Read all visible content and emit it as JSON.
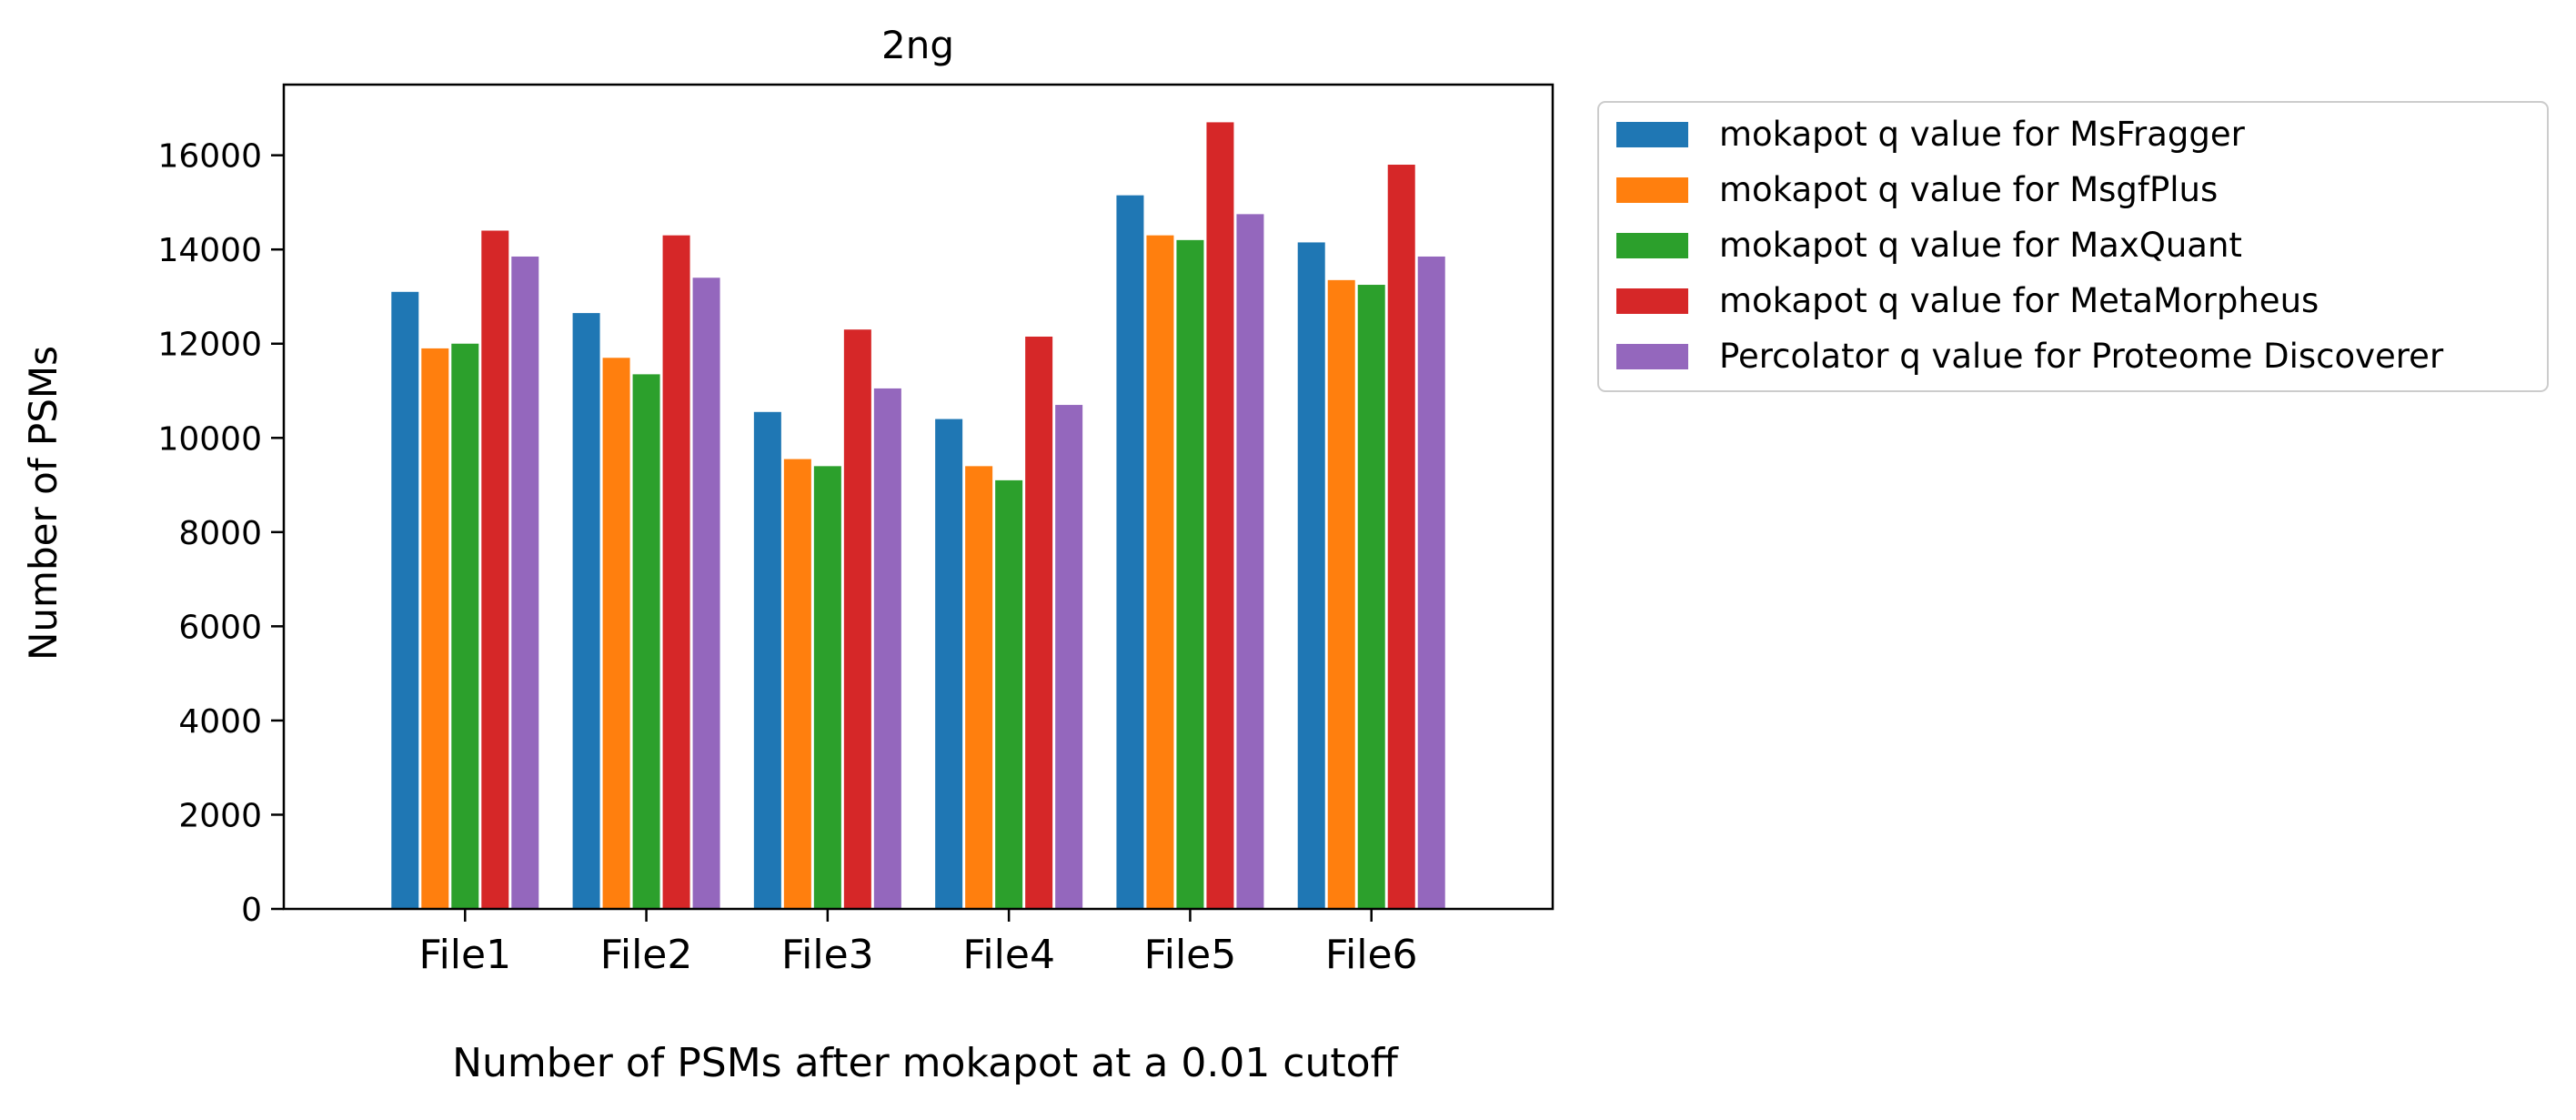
{
  "chart_data": {
    "type": "bar",
    "title": "2ng",
    "xlabel": "Number of PSMs after mokapot at a 0.01 cutoff",
    "ylabel": "Number of PSMs",
    "categories": [
      "File1",
      "File2",
      "File3",
      "File4",
      "File5",
      "File6"
    ],
    "ylim": [
      0,
      17500
    ],
    "yticks": [
      "0",
      "2000",
      "4000",
      "6000",
      "8000",
      "10000",
      "12000",
      "14000",
      "16000"
    ],
    "grid": false,
    "legend_position": "outside-top-right",
    "series": [
      {
        "name": "mokapot q value for MsFragger",
        "color": "#1f77b4",
        "values": [
          13100,
          12650,
          10550,
          10400,
          15150,
          14150
        ]
      },
      {
        "name": "mokapot q value for MsgfPlus",
        "color": "#ff7f0e",
        "values": [
          11900,
          11700,
          9550,
          9400,
          14300,
          13350
        ]
      },
      {
        "name": "mokapot q value for MaxQuant",
        "color": "#2ca02c",
        "values": [
          12000,
          11350,
          9400,
          9100,
          14200,
          13250
        ]
      },
      {
        "name": "mokapot q value for MetaMorpheus",
        "color": "#d62728",
        "values": [
          14400,
          14300,
          12300,
          12150,
          16700,
          15800
        ]
      },
      {
        "name": "Percolator q value for Proteome Discoverer",
        "color": "#9467bd",
        "values": [
          13850,
          13400,
          11050,
          10700,
          14750,
          13850
        ]
      }
    ]
  }
}
